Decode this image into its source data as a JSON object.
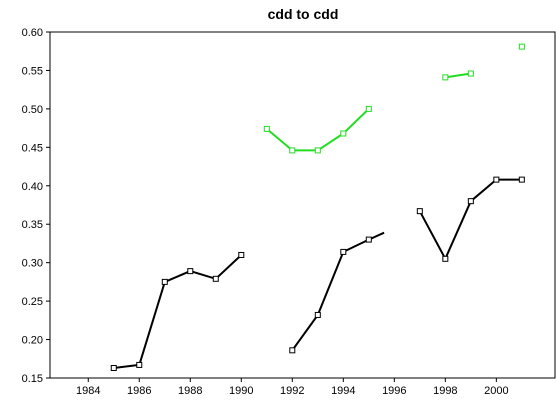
{
  "chart_data": {
    "type": "line",
    "title": "cdd to cdd",
    "xlabel": "",
    "ylabel": "",
    "xlim": [
      1982.5,
      2002.3
    ],
    "ylim": [
      0.15,
      0.6
    ],
    "x_ticks": [
      "1984",
      "1986",
      "1988",
      "1990",
      "1992",
      "1994",
      "1996",
      "1998",
      "2000"
    ],
    "y_ticks": [
      "0.15",
      "0.20",
      "0.25",
      "0.30",
      "0.35",
      "0.40",
      "0.45",
      "0.50",
      "0.55",
      "0.60"
    ],
    "grid": false,
    "colors": {
      "black_series": "#000000",
      "green_series": "#22dd22"
    },
    "series": [
      {
        "color": "#000000",
        "segments": [
          {
            "points": [
              [
                1985,
                0.163
              ],
              [
                1986,
                0.167
              ],
              [
                1987,
                0.275
              ],
              [
                1988,
                0.289
              ],
              [
                1989,
                0.279
              ],
              [
                1990,
                0.31
              ]
            ],
            "markers": true
          },
          {
            "points": [
              [
                1992,
                0.186
              ],
              [
                1993,
                0.232
              ],
              [
                1994,
                0.314
              ],
              [
                1995,
                0.33
              ],
              [
                1995.6,
                0.339
              ]
            ],
            "markers": [
              true,
              true,
              true,
              true,
              false
            ]
          },
          {
            "points": [
              [
                1997,
                0.367
              ],
              [
                1998,
                0.305
              ],
              [
                1999,
                0.38
              ],
              [
                2000,
                0.408
              ],
              [
                2001,
                0.408
              ]
            ],
            "markers": true
          }
        ]
      },
      {
        "color": "#22dd22",
        "segments": [
          {
            "points": [
              [
                1991,
                0.474
              ],
              [
                1992,
                0.446
              ],
              [
                1993,
                0.446
              ],
              [
                1994,
                0.468
              ],
              [
                1995,
                0.5
              ]
            ],
            "markers": true
          },
          {
            "points": [
              [
                1998,
                0.541
              ],
              [
                1999,
                0.546
              ]
            ],
            "markers": true
          },
          {
            "points": [
              [
                2001,
                0.581
              ]
            ],
            "markers": true
          }
        ]
      }
    ]
  }
}
